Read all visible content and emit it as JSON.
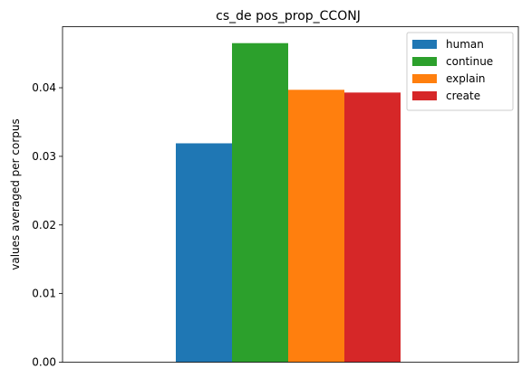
{
  "chart_data": {
    "type": "bar",
    "title": "cs_de pos_prop_CCONJ",
    "xlabel": "",
    "ylabel": "values averaged per corpus",
    "categories": [
      ""
    ],
    "series": [
      {
        "name": "human",
        "values": [
          0.0319
        ],
        "color": "#1f77b4"
      },
      {
        "name": "continue",
        "values": [
          0.0465
        ],
        "color": "#2ca02c"
      },
      {
        "name": "explain",
        "values": [
          0.0397
        ],
        "color": "#ff7f0e"
      },
      {
        "name": "create",
        "values": [
          0.0393
        ],
        "color": "#d62728"
      }
    ],
    "ylim": [
      0,
      0.0489
    ],
    "yticks": [
      0.0,
      0.01,
      0.02,
      0.03,
      0.04
    ],
    "ytick_labels": [
      "0.00",
      "0.01",
      "0.02",
      "0.03",
      "0.04"
    ],
    "grid": false,
    "legend": "top-right"
  }
}
